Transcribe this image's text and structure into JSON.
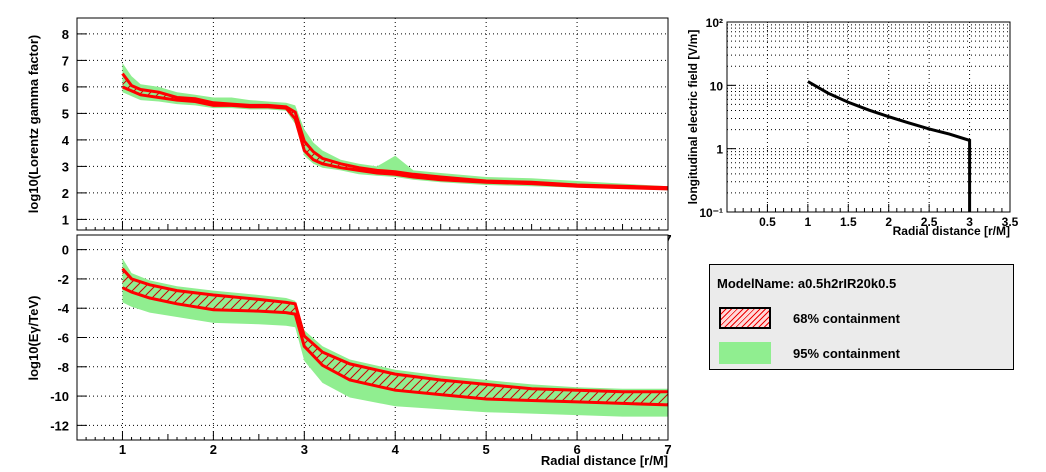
{
  "chart_data": [
    {
      "type": "area",
      "title": "",
      "ylabel": "log10(Lorentz gamma factor)",
      "xlabel": "",
      "xlim": [
        0.5,
        7.0
      ],
      "ylim": [
        0.6,
        8.6
      ],
      "xticks": [
        1,
        2,
        3,
        4,
        5,
        6,
        7
      ],
      "yticks": [
        1,
        2,
        3,
        4,
        5,
        6,
        7,
        8
      ],
      "grid": true,
      "x": [
        1.0,
        1.1,
        1.2,
        1.4,
        1.6,
        1.8,
        2.0,
        2.2,
        2.4,
        2.6,
        2.8,
        2.9,
        3.0,
        3.1,
        3.2,
        3.4,
        3.6,
        3.8,
        4.0,
        4.2,
        4.5,
        5.0,
        5.5,
        6.0,
        6.5,
        7.0
      ],
      "series": [
        {
          "name": "95% upper",
          "values": [
            6.9,
            6.4,
            6.1,
            6.0,
            5.8,
            5.7,
            5.6,
            5.6,
            5.5,
            5.45,
            5.4,
            5.3,
            4.4,
            3.9,
            3.6,
            3.25,
            3.1,
            3.0,
            3.4,
            2.85,
            2.75,
            2.6,
            2.55,
            2.45,
            2.35,
            2.25
          ]
        },
        {
          "name": "68% upper",
          "values": [
            6.5,
            6.05,
            5.9,
            5.8,
            5.6,
            5.55,
            5.4,
            5.35,
            5.3,
            5.3,
            5.25,
            5.05,
            3.95,
            3.55,
            3.3,
            3.1,
            2.95,
            2.85,
            2.8,
            2.7,
            2.6,
            2.45,
            2.4,
            2.3,
            2.25,
            2.2
          ]
        },
        {
          "name": "68% lower",
          "values": [
            6.0,
            5.85,
            5.7,
            5.6,
            5.5,
            5.45,
            5.3,
            5.3,
            5.25,
            5.25,
            5.2,
            4.8,
            3.6,
            3.25,
            3.1,
            2.95,
            2.85,
            2.75,
            2.7,
            2.6,
            2.5,
            2.4,
            2.35,
            2.25,
            2.2,
            2.15
          ]
        },
        {
          "name": "95% lower",
          "values": [
            5.8,
            5.65,
            5.5,
            5.45,
            5.35,
            5.3,
            5.2,
            5.2,
            5.15,
            5.15,
            5.1,
            4.6,
            3.4,
            3.1,
            2.95,
            2.85,
            2.7,
            2.65,
            2.6,
            2.5,
            2.4,
            2.3,
            2.25,
            2.2,
            2.15,
            2.1
          ]
        }
      ]
    },
    {
      "type": "area",
      "title": "",
      "ylabel": "log10(Eγ/TeV)",
      "xlabel": "Radial distance [r/M]",
      "xlim": [
        0.5,
        7.0
      ],
      "ylim": [
        -13,
        1
      ],
      "xticks": [
        1,
        2,
        3,
        4,
        5,
        6,
        7
      ],
      "yticks": [
        0,
        -2,
        -4,
        -6,
        -8,
        -10,
        -12
      ],
      "grid": true,
      "x": [
        1.0,
        1.1,
        1.3,
        1.6,
        2.0,
        2.5,
        2.8,
        2.9,
        3.0,
        3.2,
        3.5,
        4.0,
        4.5,
        5.0,
        5.5,
        6.0,
        6.5,
        7.0
      ],
      "series": [
        {
          "name": "95% upper",
          "values": [
            -0.6,
            -1.6,
            -2.1,
            -2.5,
            -2.8,
            -3.1,
            -3.3,
            -3.5,
            -5.5,
            -6.6,
            -7.5,
            -8.2,
            -8.6,
            -8.9,
            -9.2,
            -9.4,
            -9.5,
            -9.5
          ]
        },
        {
          "name": "68% upper",
          "values": [
            -1.3,
            -2.0,
            -2.4,
            -2.8,
            -3.1,
            -3.4,
            -3.6,
            -3.7,
            -5.9,
            -7.0,
            -7.8,
            -8.5,
            -8.9,
            -9.2,
            -9.5,
            -9.6,
            -9.7,
            -9.7
          ]
        },
        {
          "name": "68% lower",
          "values": [
            -2.6,
            -2.9,
            -3.3,
            -3.7,
            -4.1,
            -4.2,
            -4.3,
            -4.4,
            -6.6,
            -7.9,
            -8.9,
            -9.6,
            -9.9,
            -10.2,
            -10.3,
            -10.4,
            -10.5,
            -10.6
          ]
        },
        {
          "name": "95% lower",
          "values": [
            -3.6,
            -3.9,
            -4.3,
            -4.6,
            -5.0,
            -5.1,
            -5.2,
            -5.3,
            -7.6,
            -9.1,
            -10.1,
            -10.7,
            -10.9,
            -11.1,
            -11.2,
            -11.3,
            -11.4,
            -11.4
          ]
        }
      ]
    },
    {
      "type": "line",
      "title": "",
      "ylabel": "longitudinal electric field [V/m]",
      "xlabel": "Radial distance [r/M]",
      "xlim": [
        0,
        3.5
      ],
      "ylim": [
        0.1,
        100
      ],
      "yscale": "log",
      "xticks": [
        0.5,
        1,
        1.5,
        2,
        2.5,
        3,
        3.5
      ],
      "xticklabels": [
        "0.5",
        "1",
        "1.5",
        "2",
        "2.5",
        "3",
        "3.5"
      ],
      "yticks": [
        0.1,
        1,
        10,
        100
      ],
      "yticklabels": [
        "10⁻¹",
        "1",
        "10",
        "10²"
      ],
      "grid": true,
      "x": [
        1.0,
        1.25,
        1.5,
        1.75,
        2.0,
        2.25,
        2.5,
        2.75,
        3.0,
        3.0
      ],
      "values": [
        11.5,
        7.5,
        5.4,
        4.1,
        3.2,
        2.55,
        2.05,
        1.7,
        1.35,
        0.1
      ]
    }
  ],
  "legend": {
    "title": "ModelName: a0.5h2rIR20k0.5",
    "entries": [
      {
        "label": "68% containment",
        "color": "#ff0000"
      },
      {
        "label": "95% containment",
        "color": "#90ee90"
      }
    ]
  },
  "colors": {
    "band95": "#90ee90",
    "band68": "#ff0000",
    "line": "#000000"
  }
}
